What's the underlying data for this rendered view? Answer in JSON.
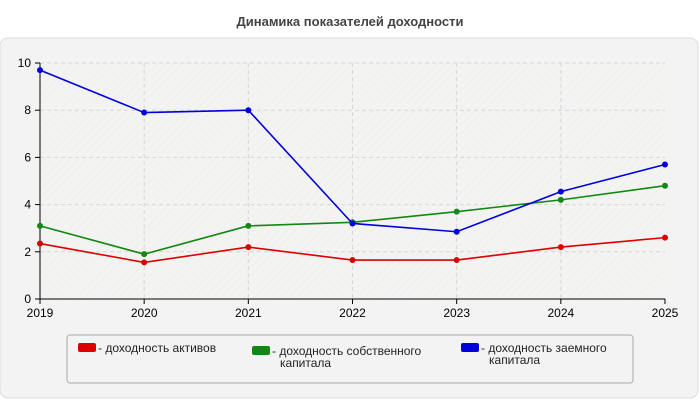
{
  "chart_data": {
    "type": "line",
    "title": "Динамика показателей доходности",
    "xlabel": "",
    "ylabel": "",
    "x": [
      "2019",
      "2020",
      "2021",
      "2022",
      "2023",
      "2024",
      "2025"
    ],
    "ylim": [
      0,
      10
    ],
    "yticks": [
      0,
      2,
      4,
      6,
      8,
      10
    ],
    "grid": true,
    "legend_position": "bottom",
    "series": [
      {
        "name": "- доходность активов",
        "color": "#dd0000",
        "values": [
          2.35,
          1.55,
          2.2,
          1.65,
          1.65,
          2.2,
          2.6
        ]
      },
      {
        "name": "- доходность собственного капитала",
        "color": "#118811",
        "values": [
          3.1,
          1.9,
          3.1,
          3.25,
          3.7,
          4.2,
          4.8
        ]
      },
      {
        "name": "- доходность заемного капитала",
        "color": "#0000dd",
        "values": [
          9.7,
          7.9,
          8.0,
          3.2,
          2.85,
          4.55,
          5.7
        ]
      }
    ]
  }
}
